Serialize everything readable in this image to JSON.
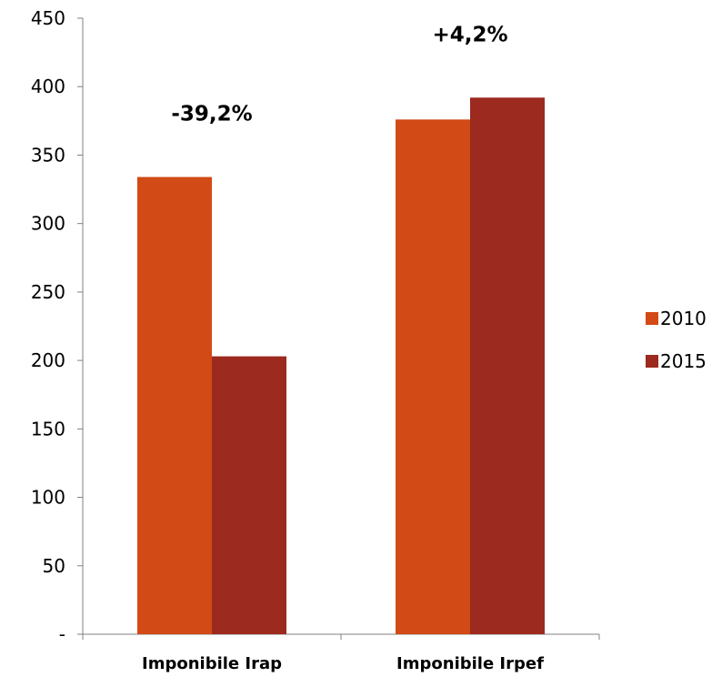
{
  "chart_data": {
    "type": "bar",
    "title": "",
    "xlabel": "",
    "ylabel": "",
    "categories": [
      "Imponibile Irap",
      "Imponibile Irpef"
    ],
    "series": [
      {
        "name": "2010",
        "values": [
          334,
          376
        ],
        "color": "#d24a16"
      },
      {
        "name": "2015",
        "values": [
          203,
          392
        ],
        "color": "#9c2a1f"
      }
    ],
    "ylim": [
      0,
      450
    ],
    "y_ticks": [
      0,
      50,
      100,
      150,
      200,
      250,
      300,
      350,
      400,
      450
    ],
    "y_tick_labels": [
      "-",
      "50",
      "100",
      "150",
      "200",
      "250",
      "300",
      "350",
      "400",
      "450"
    ],
    "annotations": [
      {
        "category": "Imponibile Irap",
        "text": "-39,2%"
      },
      {
        "category": "Imponibile Irpef",
        "text": "+4,2%"
      }
    ],
    "grid": false,
    "legend_position": "right"
  }
}
